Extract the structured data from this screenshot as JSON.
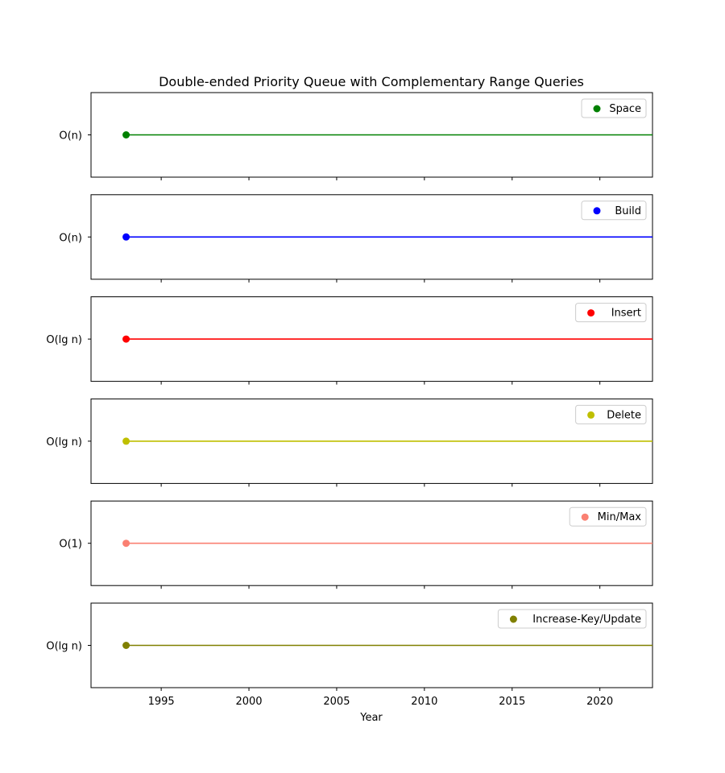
{
  "chart_data": {
    "type": "line",
    "title": "Double-ended Priority Queue with Complementary Range Queries",
    "xlabel": "Year",
    "xlim": [
      1991,
      2023
    ],
    "xticks": [
      1995,
      2000,
      2005,
      2010,
      2015,
      2020
    ],
    "grid": false,
    "legend_placement": "top-right",
    "panels": [
      {
        "name": "Space",
        "complexity": "O(n)",
        "color": "#008000",
        "x": [
          1993,
          2023
        ]
      },
      {
        "name": "Build",
        "complexity": "O(n)",
        "color": "#0000ff",
        "x": [
          1993,
          2023
        ]
      },
      {
        "name": "Insert",
        "complexity": "O(lg n)",
        "color": "#ff0000",
        "x": [
          1993,
          2023
        ]
      },
      {
        "name": "Delete",
        "complexity": "O(lg n)",
        "color": "#bfbf00",
        "x": [
          1993,
          2023
        ]
      },
      {
        "name": "Min/Max",
        "complexity": "O(1)",
        "color": "#fa8072",
        "x": [
          1993,
          2023
        ]
      },
      {
        "name": "Increase-Key/Update",
        "complexity": "O(lg n)",
        "color": "#808000",
        "x": [
          1993,
          2023
        ]
      }
    ]
  }
}
